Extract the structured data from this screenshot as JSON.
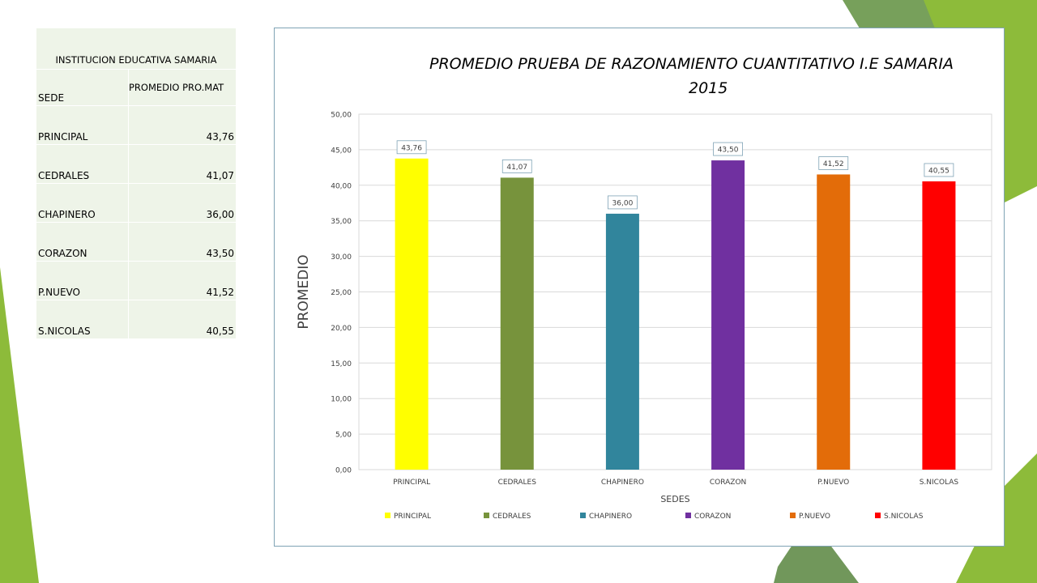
{
  "table": {
    "title": "INSTITUCION EDUCATIVA SAMARIA",
    "col_sede": "SEDE",
    "col_promedio": "PROMEDIO PRO.MAT",
    "rows": [
      {
        "sede": "PRINCIPAL",
        "promedio": "43,76"
      },
      {
        "sede": "CEDRALES",
        "promedio": "41,07"
      },
      {
        "sede": "CHAPINERO",
        "promedio": "36,00"
      },
      {
        "sede": "CORAZON",
        "promedio": "43,50"
      },
      {
        "sede": "P.NUEVO",
        "promedio": "41,52"
      },
      {
        "sede": "S.NICOLAS",
        "promedio": "40,55"
      }
    ]
  },
  "chart_data": {
    "type": "bar",
    "title_line1": "PROMEDIO PRUEBA DE RAZONAMIENTO CUANTITATIVO I.E SAMARIA",
    "title_line2": "2015",
    "xlabel": "SEDES",
    "ylabel": "PROMEDIO",
    "categories": [
      "PRINCIPAL",
      "CEDRALES",
      "CHAPINERO",
      "CORAZON",
      "P.NUEVO",
      "S.NICOLAS"
    ],
    "values": [
      43.76,
      41.07,
      36.0,
      43.5,
      41.52,
      40.55
    ],
    "data_labels": [
      "43,76",
      "41,07",
      "36,00",
      "43,50",
      "41,52",
      "40,55"
    ],
    "colors": [
      "#ffff00",
      "#77933c",
      "#31859c",
      "#7030a0",
      "#e36c09",
      "#ff0000"
    ],
    "ylim": [
      0,
      50
    ],
    "yticks": [
      "0,00",
      "5,00",
      "10,00",
      "15,00",
      "20,00",
      "25,00",
      "30,00",
      "35,00",
      "40,00",
      "45,00",
      "50,00"
    ],
    "grid": true,
    "legend_position": "bottom"
  }
}
